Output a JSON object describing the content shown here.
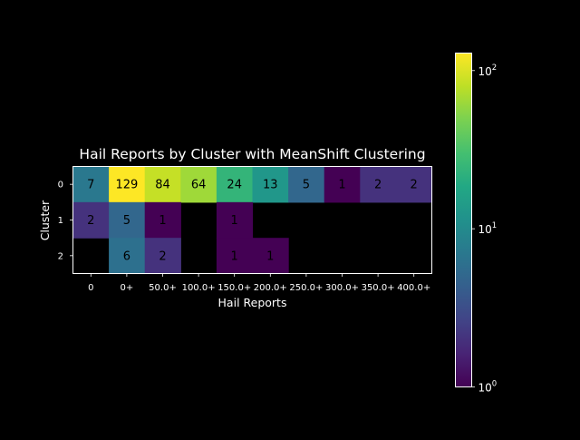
{
  "chart_data": {
    "type": "heatmap",
    "title": "Hail Reports by Cluster with MeanShift Clustering",
    "xlabel": "Hail Reports",
    "ylabel": "Cluster",
    "x_categories": [
      "0",
      "0+",
      "50.0+",
      "100.0+",
      "150.0+",
      "200.0+",
      "250.0+",
      "300.0+",
      "350.0+",
      "400.0+"
    ],
    "y_categories": [
      "0",
      "1",
      "2"
    ],
    "values": [
      [
        7,
        129,
        84,
        64,
        24,
        13,
        5,
        1,
        2,
        2
      ],
      [
        2,
        5,
        1,
        null,
        1,
        null,
        null,
        null,
        null,
        null
      ],
      [
        null,
        6,
        2,
        null,
        1,
        1,
        null,
        null,
        null,
        null
      ]
    ],
    "colorbar": {
      "scale": "log",
      "range": [
        1,
        129
      ],
      "ticks": [
        {
          "value": 1,
          "label_base": "10",
          "label_exp": "0"
        },
        {
          "value": 10,
          "label_base": "10",
          "label_exp": "1"
        },
        {
          "value": 100,
          "label_base": "10",
          "label_exp": "2"
        }
      ]
    },
    "colormap": "viridis",
    "colors": {
      "background": "#000000",
      "foreground": "#ffffff",
      "cell_text": "#000000"
    }
  }
}
